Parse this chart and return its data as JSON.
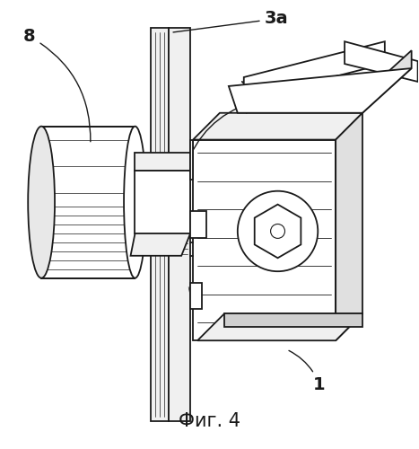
{
  "title": "Фиг. 4",
  "title_fontsize": 15,
  "background_color": "#ffffff",
  "fig_width": 4.67,
  "fig_height": 5.0,
  "dpi": 100
}
